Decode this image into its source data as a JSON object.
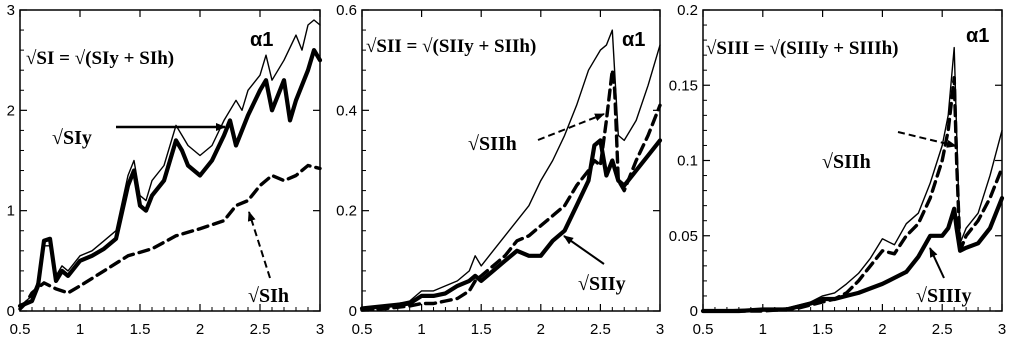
{
  "chart_data": [
    {
      "type": "line",
      "panel_label": "α1",
      "formula": "√SI = √(SIy + SIh)",
      "xlim": [
        0.5,
        3.0
      ],
      "ylim": [
        0,
        3.0
      ],
      "x_ticks": [
        "0.5",
        "1",
        "1.5",
        "2",
        "2.5",
        "3"
      ],
      "y_ticks": [
        {
          "v": 0,
          "t": "0"
        },
        {
          "v": 1,
          "t": "1"
        },
        {
          "v": 2,
          "t": "2"
        },
        {
          "v": 3,
          "t": "3"
        }
      ],
      "annotations": [
        "√SIy",
        "√SIh"
      ],
      "series": [
        {
          "style": "thin",
          "x": [
            0.5,
            0.6,
            0.65,
            0.7,
            0.75,
            0.8,
            0.85,
            0.9,
            1.0,
            1.1,
            1.2,
            1.3,
            1.4,
            1.45,
            1.5,
            1.55,
            1.6,
            1.7,
            1.8,
            1.85,
            1.9,
            2.0,
            2.1,
            2.2,
            2.3,
            2.35,
            2.4,
            2.5,
            2.55,
            2.6,
            2.7,
            2.8,
            2.85,
            2.9,
            2.95,
            3.0
          ],
          "y": [
            0.05,
            0.15,
            0.3,
            0.65,
            0.65,
            0.35,
            0.45,
            0.4,
            0.55,
            0.6,
            0.7,
            0.8,
            1.35,
            1.5,
            1.15,
            1.1,
            1.3,
            1.45,
            1.85,
            1.75,
            1.65,
            1.55,
            1.65,
            1.9,
            2.1,
            2.0,
            2.2,
            2.35,
            2.55,
            2.3,
            2.5,
            2.75,
            2.6,
            2.85,
            2.9,
            2.85
          ]
        },
        {
          "style": "thick",
          "x": [
            0.5,
            0.6,
            0.65,
            0.7,
            0.75,
            0.8,
            0.85,
            0.9,
            1.0,
            1.1,
            1.2,
            1.3,
            1.4,
            1.45,
            1.5,
            1.55,
            1.6,
            1.7,
            1.8,
            1.85,
            1.9,
            2.0,
            2.1,
            2.2,
            2.25,
            2.3,
            2.4,
            2.5,
            2.55,
            2.6,
            2.7,
            2.75,
            2.8,
            2.9,
            2.95,
            3.0
          ],
          "y": [
            0.05,
            0.1,
            0.25,
            0.7,
            0.72,
            0.3,
            0.4,
            0.35,
            0.5,
            0.55,
            0.62,
            0.72,
            1.25,
            1.4,
            1.05,
            1.0,
            1.15,
            1.3,
            1.7,
            1.6,
            1.45,
            1.35,
            1.5,
            1.75,
            1.9,
            1.65,
            1.95,
            2.2,
            2.3,
            2.0,
            2.3,
            1.9,
            2.1,
            2.4,
            2.6,
            2.5
          ]
        },
        {
          "style": "dashed",
          "x": [
            0.5,
            0.55,
            0.6,
            0.7,
            0.8,
            0.9,
            1.0,
            1.2,
            1.4,
            1.6,
            1.8,
            2.0,
            2.2,
            2.3,
            2.4,
            2.5,
            2.6,
            2.7,
            2.8,
            2.9,
            3.0
          ],
          "y": [
            0.02,
            0.08,
            0.18,
            0.28,
            0.22,
            0.18,
            0.25,
            0.4,
            0.55,
            0.62,
            0.75,
            0.82,
            0.9,
            1.05,
            1.1,
            1.25,
            1.35,
            1.3,
            1.35,
            1.45,
            1.42
          ]
        }
      ]
    },
    {
      "type": "line",
      "panel_label": "α1",
      "formula": "√SII = √(SIIy + SIIh)",
      "xlim": [
        0.5,
        3.0
      ],
      "ylim": [
        0,
        0.6
      ],
      "x_ticks": [
        "0.5",
        "1",
        "1.5",
        "2",
        "2.5",
        "3"
      ],
      "y_ticks": [
        {
          "v": 0,
          "t": "0"
        },
        {
          "v": 0.2,
          "t": "0.2"
        },
        {
          "v": 0.4,
          "t": "0.4"
        },
        {
          "v": 0.6,
          "t": "0.6"
        }
      ],
      "annotations": [
        "√SIIh",
        "√SIIy"
      ],
      "series": [
        {
          "style": "thin",
          "x": [
            0.5,
            0.7,
            0.9,
            1.0,
            1.1,
            1.2,
            1.3,
            1.4,
            1.45,
            1.5,
            1.6,
            1.7,
            1.8,
            1.9,
            2.0,
            2.1,
            2.2,
            2.3,
            2.4,
            2.45,
            2.5,
            2.55,
            2.6,
            2.65,
            2.7,
            2.8,
            2.9,
            3.0
          ],
          "y": [
            0.005,
            0.01,
            0.02,
            0.04,
            0.04,
            0.05,
            0.06,
            0.08,
            0.11,
            0.09,
            0.12,
            0.15,
            0.18,
            0.21,
            0.26,
            0.3,
            0.35,
            0.41,
            0.48,
            0.5,
            0.52,
            0.53,
            0.56,
            0.35,
            0.34,
            0.38,
            0.45,
            0.53
          ]
        },
        {
          "style": "thick",
          "x": [
            0.5,
            0.7,
            0.9,
            1.0,
            1.1,
            1.2,
            1.3,
            1.4,
            1.45,
            1.5,
            1.6,
            1.7,
            1.8,
            1.9,
            2.0,
            2.1,
            2.2,
            2.3,
            2.4,
            2.45,
            2.5,
            2.55,
            2.6,
            2.65,
            2.7,
            2.8,
            2.9,
            3.0
          ],
          "y": [
            0.005,
            0.01,
            0.015,
            0.03,
            0.03,
            0.035,
            0.05,
            0.06,
            0.07,
            0.06,
            0.08,
            0.1,
            0.12,
            0.11,
            0.11,
            0.14,
            0.16,
            0.21,
            0.26,
            0.33,
            0.34,
            0.27,
            0.3,
            0.26,
            0.25,
            0.28,
            0.31,
            0.34
          ]
        },
        {
          "style": "dashed",
          "x": [
            0.5,
            0.7,
            0.9,
            1.0,
            1.1,
            1.2,
            1.3,
            1.4,
            1.45,
            1.5,
            1.6,
            1.7,
            1.8,
            1.9,
            2.0,
            2.1,
            2.2,
            2.3,
            2.4,
            2.45,
            2.5,
            2.55,
            2.6,
            2.62,
            2.65,
            2.7,
            2.8,
            2.9,
            3.0
          ],
          "y": [
            0.002,
            0.005,
            0.01,
            0.015,
            0.015,
            0.02,
            0.025,
            0.04,
            0.06,
            0.07,
            0.09,
            0.11,
            0.14,
            0.15,
            0.17,
            0.19,
            0.21,
            0.25,
            0.28,
            0.3,
            0.29,
            0.38,
            0.48,
            0.44,
            0.26,
            0.24,
            0.3,
            0.35,
            0.41
          ]
        }
      ]
    },
    {
      "type": "line",
      "panel_label": "α1",
      "formula": "√SIII = √(SIIIy + SIIIh)",
      "xlim": [
        0.5,
        3.0
      ],
      "ylim": [
        0,
        0.2
      ],
      "x_ticks": [
        "0.5",
        "1",
        "1.5",
        "2",
        "2.5",
        "3"
      ],
      "y_ticks": [
        {
          "v": 0,
          "t": "0"
        },
        {
          "v": 0.05,
          "t": "0.05"
        },
        {
          "v": 0.1,
          "t": "0.1"
        },
        {
          "v": 0.15,
          "t": "0.15"
        },
        {
          "v": 0.2,
          "t": "0.2"
        }
      ],
      "annotations": [
        "√SIIh",
        "√SIIIy"
      ],
      "series": [
        {
          "style": "thin",
          "x": [
            0.5,
            0.8,
            1.0,
            1.2,
            1.3,
            1.4,
            1.5,
            1.6,
            1.7,
            1.8,
            1.9,
            2.0,
            2.1,
            2.2,
            2.3,
            2.4,
            2.5,
            2.55,
            2.6,
            2.62,
            2.65,
            2.7,
            2.8,
            2.9,
            3.0
          ],
          "y": [
            0,
            0.001,
            0.001,
            0.002,
            0.004,
            0.006,
            0.01,
            0.012,
            0.018,
            0.025,
            0.035,
            0.048,
            0.044,
            0.058,
            0.065,
            0.085,
            0.11,
            0.13,
            0.175,
            0.12,
            0.045,
            0.055,
            0.065,
            0.09,
            0.12
          ]
        },
        {
          "style": "thick",
          "x": [
            0.5,
            0.8,
            1.0,
            1.2,
            1.3,
            1.4,
            1.5,
            1.6,
            1.7,
            1.8,
            1.9,
            2.0,
            2.1,
            2.2,
            2.3,
            2.4,
            2.5,
            2.55,
            2.6,
            2.62,
            2.65,
            2.7,
            2.8,
            2.9,
            3.0
          ],
          "y": [
            0,
            0,
            0.001,
            0.001,
            0.003,
            0.005,
            0.008,
            0.008,
            0.01,
            0.012,
            0.015,
            0.018,
            0.022,
            0.026,
            0.036,
            0.05,
            0.05,
            0.055,
            0.068,
            0.055,
            0.04,
            0.042,
            0.045,
            0.055,
            0.075
          ]
        },
        {
          "style": "dashed",
          "x": [
            0.5,
            0.8,
            1.0,
            1.2,
            1.3,
            1.4,
            1.5,
            1.6,
            1.7,
            1.8,
            1.9,
            2.0,
            2.1,
            2.2,
            2.3,
            2.4,
            2.5,
            2.55,
            2.6,
            2.62,
            2.65,
            2.7,
            2.8,
            2.9,
            3.0
          ],
          "y": [
            0,
            0,
            0,
            0.001,
            0.002,
            0.004,
            0.006,
            0.008,
            0.012,
            0.02,
            0.03,
            0.04,
            0.038,
            0.05,
            0.058,
            0.075,
            0.1,
            0.12,
            0.155,
            0.1,
            0.04,
            0.05,
            0.06,
            0.075,
            0.095
          ]
        }
      ]
    }
  ]
}
